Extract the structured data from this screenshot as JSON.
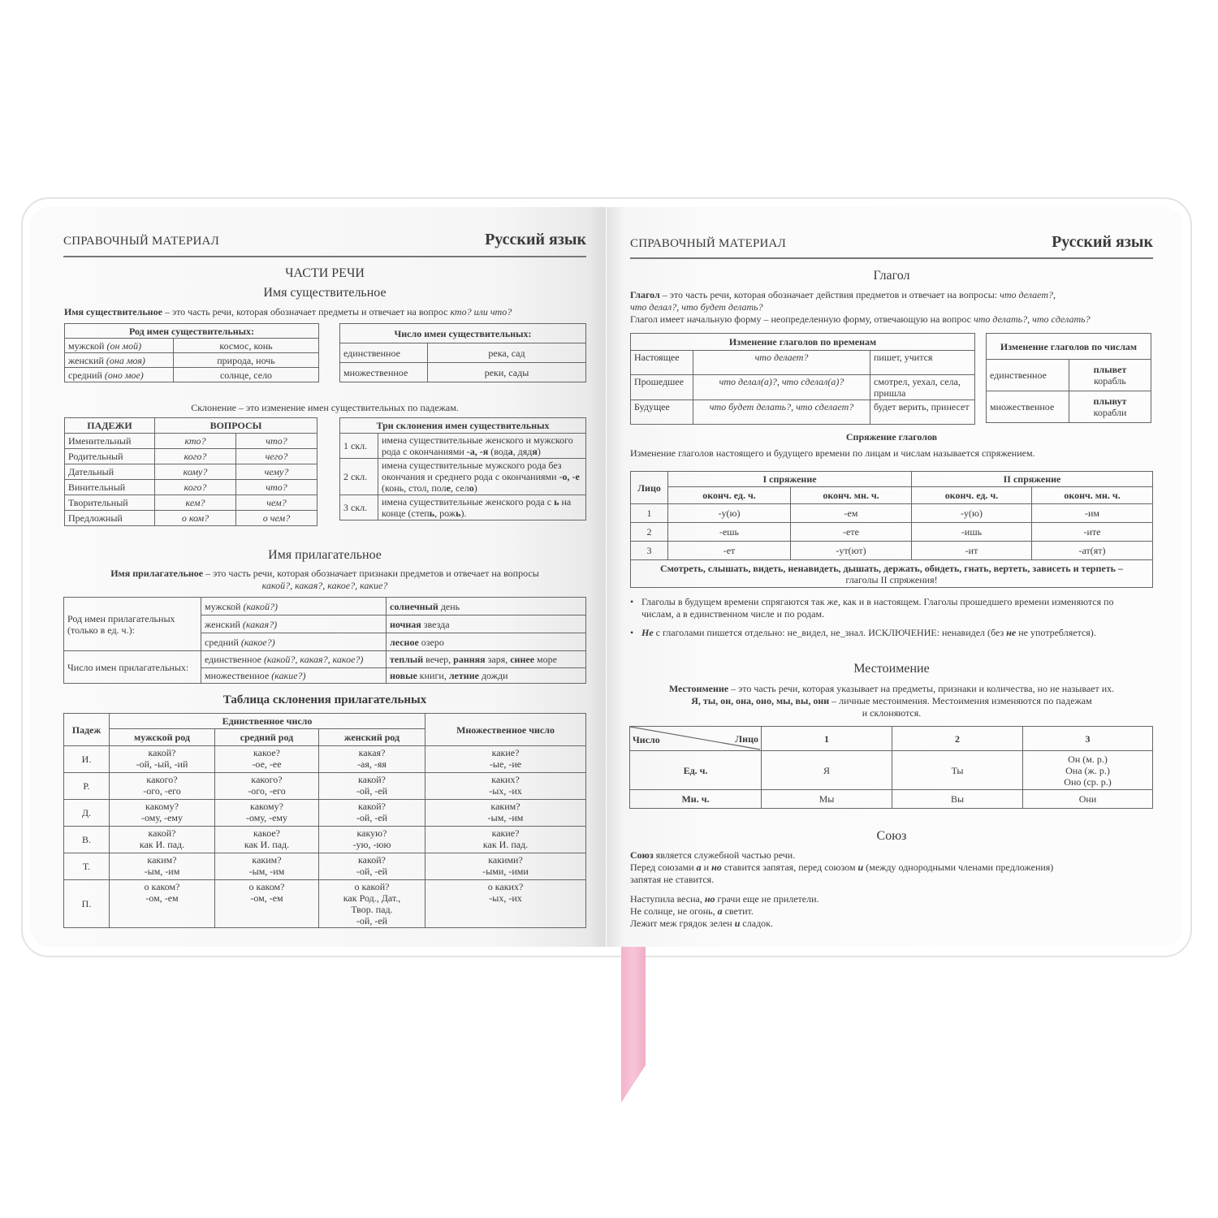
{
  "left": {
    "header": "СПРАВОЧНЫЙ МАТЕРИАЛ",
    "title": "Русский язык",
    "section": "ЧАСТИ РЕЧИ",
    "noun_title": "Имя существительное",
    "noun_def": "**Имя существительное** – это часть речи, которая обозначает предметы  и отвечает на вопрос *кто? или что?*",
    "gender_table": {
      "header": "Род имен существительных:",
      "rows": [
        [
          "мужской *(он мой)*",
          "космос, конь"
        ],
        [
          "женский *(она моя)*",
          "природа, ночь"
        ],
        [
          "средний *(оно мое)*",
          "солнце, село"
        ]
      ]
    },
    "number_table": {
      "header": "Число имен существительных:",
      "rows": [
        [
          "единственное",
          "река, сад"
        ],
        [
          "множественное",
          "реки, сады"
        ]
      ]
    },
    "declension_def": "Склонение – это изменение имен существительных по падежам.",
    "cases_table": {
      "headers": [
        "ПАДЕЖИ",
        "ВОПРОСЫ"
      ],
      "rows": [
        [
          "Именительный",
          "кто?",
          "что?"
        ],
        [
          "Родительный",
          "кого?",
          "чего?"
        ],
        [
          "Дательный",
          "кому?",
          "чему?"
        ],
        [
          "Винительный",
          "кого?",
          "что?"
        ],
        [
          "Творительный",
          "кем?",
          "чем?"
        ],
        [
          "Предложный",
          "о ком?",
          "о чем?"
        ]
      ]
    },
    "three_decl_table": {
      "header": "Три склонения имен существительных",
      "rows": [
        [
          "1 скл.",
          "имена существительные женского и мужского рода с окончаниями **-а, -я** (вод**а**, дяд**я**)"
        ],
        [
          "2 скл.",
          "имена существительные мужского рода без окончания и среднего рода с окончаниями **-о, -е** (конь, стол, пол**е**, сел**о**)"
        ],
        [
          "3 скл.",
          "имена существительные женского рода с **ь** на конце (степ**ь**, рож**ь**)."
        ]
      ]
    },
    "adj_title": "Имя прилагательное",
    "adj_def": "**Имя прилагательное** – это часть речи, которая обозначает признаки предметов и отвечает на вопросы",
    "adj_def2": "*какой?, какая?, какое?, какие?*",
    "adj_table": {
      "gender_label": "Род имен прилагательных (только в ед. ч.):",
      "number_label": "Число имен прилагательных:",
      "rows": [
        [
          "мужской *(какой?)*",
          "**солнечный** день"
        ],
        [
          "женский *(какая?)*",
          "**ночная** звезда"
        ],
        [
          "средний *(какое?)*",
          "**лесное** озеро"
        ],
        [
          "единственное *(какой?, какая?, какое?)*",
          "**теплый** вечер, **ранняя** заря, **синее** море"
        ],
        [
          "множественное *(какие?)*",
          "**новые** книги, **летние** дожди"
        ]
      ]
    },
    "adj_decl_title": "Таблица склонения прилагательных",
    "adj_decl_table": {
      "case": "Падеж",
      "singular": "Единственное число",
      "masc": "мужской род",
      "neut": "средний род",
      "fem": "женский род",
      "plural": "Множественное число",
      "rows": [
        [
          "И.",
          "какой?\n-ой, -ый, -ий",
          "какое?\n-ое, -ее",
          "какая?\n-ая, -яя",
          "какие?\n-ые, -ие"
        ],
        [
          "Р.",
          "какого?\n-ого, -его",
          "какого?\n-ого, -его",
          "какой?\n-ой, -ей",
          "каких?\n-ых, -их"
        ],
        [
          "Д.",
          "какому?\n-ому, -ему",
          "какому?\n-ому, -ему",
          "какой?\n-ой, -ей",
          "каким?\n-ым, -им"
        ],
        [
          "В.",
          "какой?\nкак И. пад.",
          "какое?\nкак И. пад.",
          "какую?\n-ую, -юю",
          "какие?\nкак И. пад."
        ],
        [
          "Т.",
          "каким?\n-ым, -им",
          "каким?\n-ым, -им",
          "какой?\n-ой, -ей",
          "какими?\n-ыми, -ими"
        ],
        [
          "П.",
          "о каком?\n-ом, -ем",
          "о каком?\n-ом, -ем",
          "о какой?\nкак Род., Дат.,\nТвор. пад.\n-ой, -ей",
          "о каких?\n-ых, -их"
        ]
      ]
    }
  },
  "right": {
    "header": "СПРАВОЧНЫЙ МАТЕРИАЛ",
    "title": "Русский язык",
    "verb_title": "Глагол",
    "verb_def1": "**Глагол**  – это часть речи, которая обозначает действия предметов и отвечает на вопросы: *что делает?,*",
    "verb_def2": "*что делал?, что будет делать?*",
    "verb_def3": "Глагол имеет начальную форму – неопределенную форму, отвечающую на вопрос *что делать?, что сделать?*",
    "tense_table": {
      "header": "Изменение глаголов по временам",
      "rows": [
        [
          "Настоящее",
          "*что делает?*",
          "пишет, учится"
        ],
        [
          "Прошедшее",
          "*что делал(а)?, что сделал(а)?*",
          "смотрел, уехал, села, пришла"
        ],
        [
          "Будущее",
          "*что будет делать?, что сделает?*",
          "будет верить, принесет"
        ]
      ]
    },
    "number_table": {
      "header": "Изменение глаголов по числам",
      "rows": [
        [
          "единственное",
          "**плывет**\nкорабль"
        ],
        [
          "множественное",
          "**плывут**\nкорабли"
        ]
      ]
    },
    "conj_title": "Спряжение глаголов",
    "conj_def": "Изменение глаголов настоящего и будущего времени по лицам и числам называется спряжением.",
    "conj_table": {
      "person": "Лицо",
      "conj1": "I спряжение",
      "conj2": "II спряжение",
      "sg": "оконч. ед. ч.",
      "pl": "оконч. мн. ч.",
      "rows": [
        [
          "1",
          "-у(ю)",
          "-ем",
          "-у(ю)",
          "-им"
        ],
        [
          "2",
          "-ешь",
          "-ете",
          "-ишь",
          "-ите"
        ],
        [
          "3",
          "-ет",
          "-ут(ют)",
          "-ит",
          "-ат(ят)"
        ]
      ],
      "note": "**Смотреть, слышать, видеть, ненавидеть, дышать, держать, обидеть, гнать, вертеть, зависеть и терпеть –**\nглаголы II спряжения!"
    },
    "bullets": [
      "Глаголы в будущем времени спрягаются так же, как и в настоящем. Глаголы прошедшего времени изменяются по числам, а в единственном числе и по родам.",
      "***Не*** с глаголами пишется отдельно: не_видел, не_знал. ИСКЛЮЧЕНИЕ: ненавидел (без ***не*** не употребляется)."
    ],
    "pron_title": "Местоимение",
    "pron_def": "**Местоимение** – это часть речи, которая указывает на предметы, признаки и количества, но не называет их.\n**Я, ты, он, она, оно, мы, вы, они** – личные местоимения. Местоимения изменяются по падежам\nи склоняются.",
    "pron_table": {
      "number": "Число",
      "person": "Лицо",
      "cols": [
        "1",
        "2",
        "3"
      ],
      "rows": [
        [
          "Ед. ч.",
          "Я",
          "Ты",
          "Он (м. р.)\nОна (ж. р.)\nОно (ср. р.)"
        ],
        [
          "Мн. ч.",
          "Мы",
          "Вы",
          "Они"
        ]
      ]
    },
    "conj2_title": "Союз",
    "union_text": "**Союз** является служебной частью речи.\nПеред союзами ***а*** и ***но*** ставится запятая, перед союзом ***и*** (между однородными членами предложения)\nзапятая не ставится.",
    "union_examples": "Наступила весна, ***но*** грачи еще не прилетели.\nНе солнце, не огонь, ***а*** светит.\nЛежит меж грядок зелен ***и*** сладок."
  },
  "colors": {
    "ribbon": "#f6bcd2",
    "border": "#666666",
    "text": "#3a3a3a"
  }
}
